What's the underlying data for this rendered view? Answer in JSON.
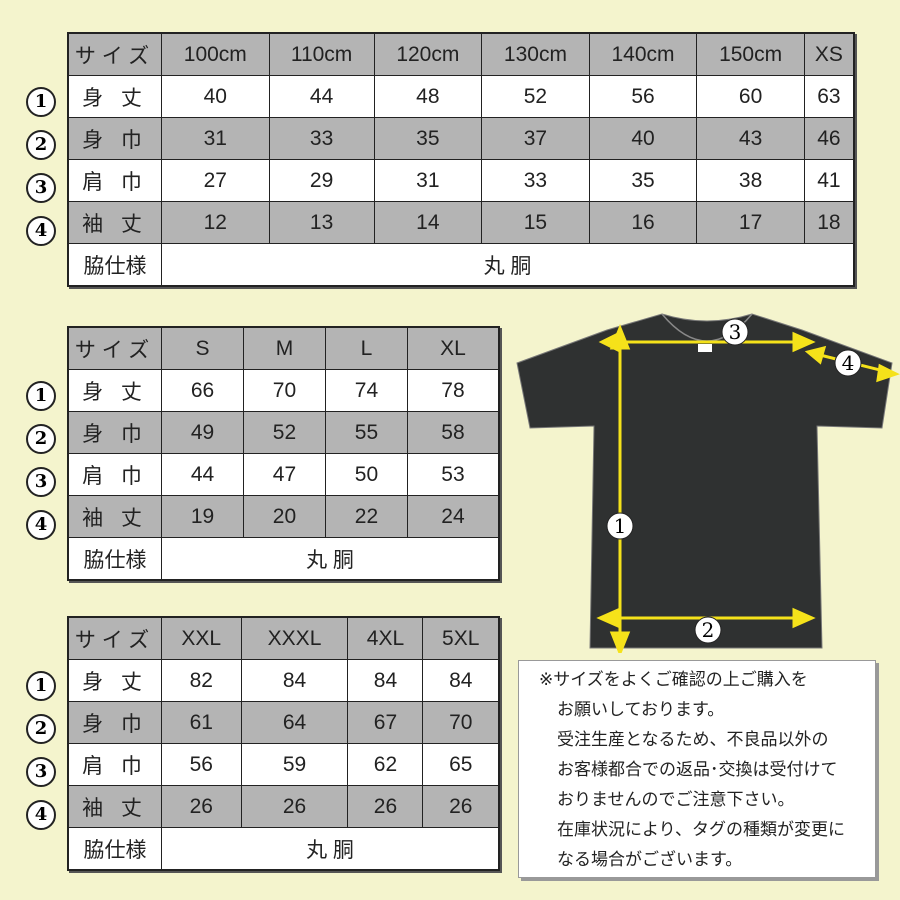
{
  "row_labels": [
    "身 丈",
    "身 巾",
    "肩 巾",
    "袖 丈"
  ],
  "circle_numbers": [
    "1",
    "2",
    "3",
    "4"
  ],
  "size_label": "サイズ",
  "side_label": "脇仕様",
  "side_value": "丸 胴",
  "tables": [
    {
      "sizes": [
        "100cm",
        "110cm",
        "120cm",
        "130cm",
        "140cm",
        "150cm",
        "XS"
      ],
      "rows": [
        [
          "40",
          "44",
          "48",
          "52",
          "56",
          "60",
          "63"
        ],
        [
          "31",
          "33",
          "35",
          "37",
          "40",
          "43",
          "46"
        ],
        [
          "27",
          "29",
          "31",
          "33",
          "35",
          "38",
          "41"
        ],
        [
          "12",
          "13",
          "14",
          "15",
          "16",
          "17",
          "18"
        ]
      ]
    },
    {
      "sizes": [
        "S",
        "M",
        "L",
        "XL"
      ],
      "rows": [
        [
          "66",
          "70",
          "74",
          "78"
        ],
        [
          "49",
          "52",
          "55",
          "58"
        ],
        [
          "44",
          "47",
          "50",
          "53"
        ],
        [
          "19",
          "20",
          "22",
          "24"
        ]
      ]
    },
    {
      "sizes": [
        "XXL",
        "XXXL",
        "4XL",
        "5XL"
      ],
      "rows": [
        [
          "82",
          "84",
          "84",
          "84"
        ],
        [
          "61",
          "64",
          "67",
          "70"
        ],
        [
          "56",
          "59",
          "62",
          "65"
        ],
        [
          "26",
          "26",
          "26",
          "26"
        ]
      ]
    }
  ],
  "note": [
    "※サイズをよくご確認の上ご購入を",
    "お願いしております。",
    "受注生産となるため、不良品以外の",
    "お客様都合での返品･交換は受付けて",
    "おりませんのでご注意下さい。",
    "在庫状況により、タグの種類が変更に",
    "なる場合がございます。"
  ],
  "colors": {
    "background": "#f4f4cd",
    "gray_row": "#b4b4b4",
    "arrow": "#f5e21a",
    "shirt": "#2f3131"
  }
}
